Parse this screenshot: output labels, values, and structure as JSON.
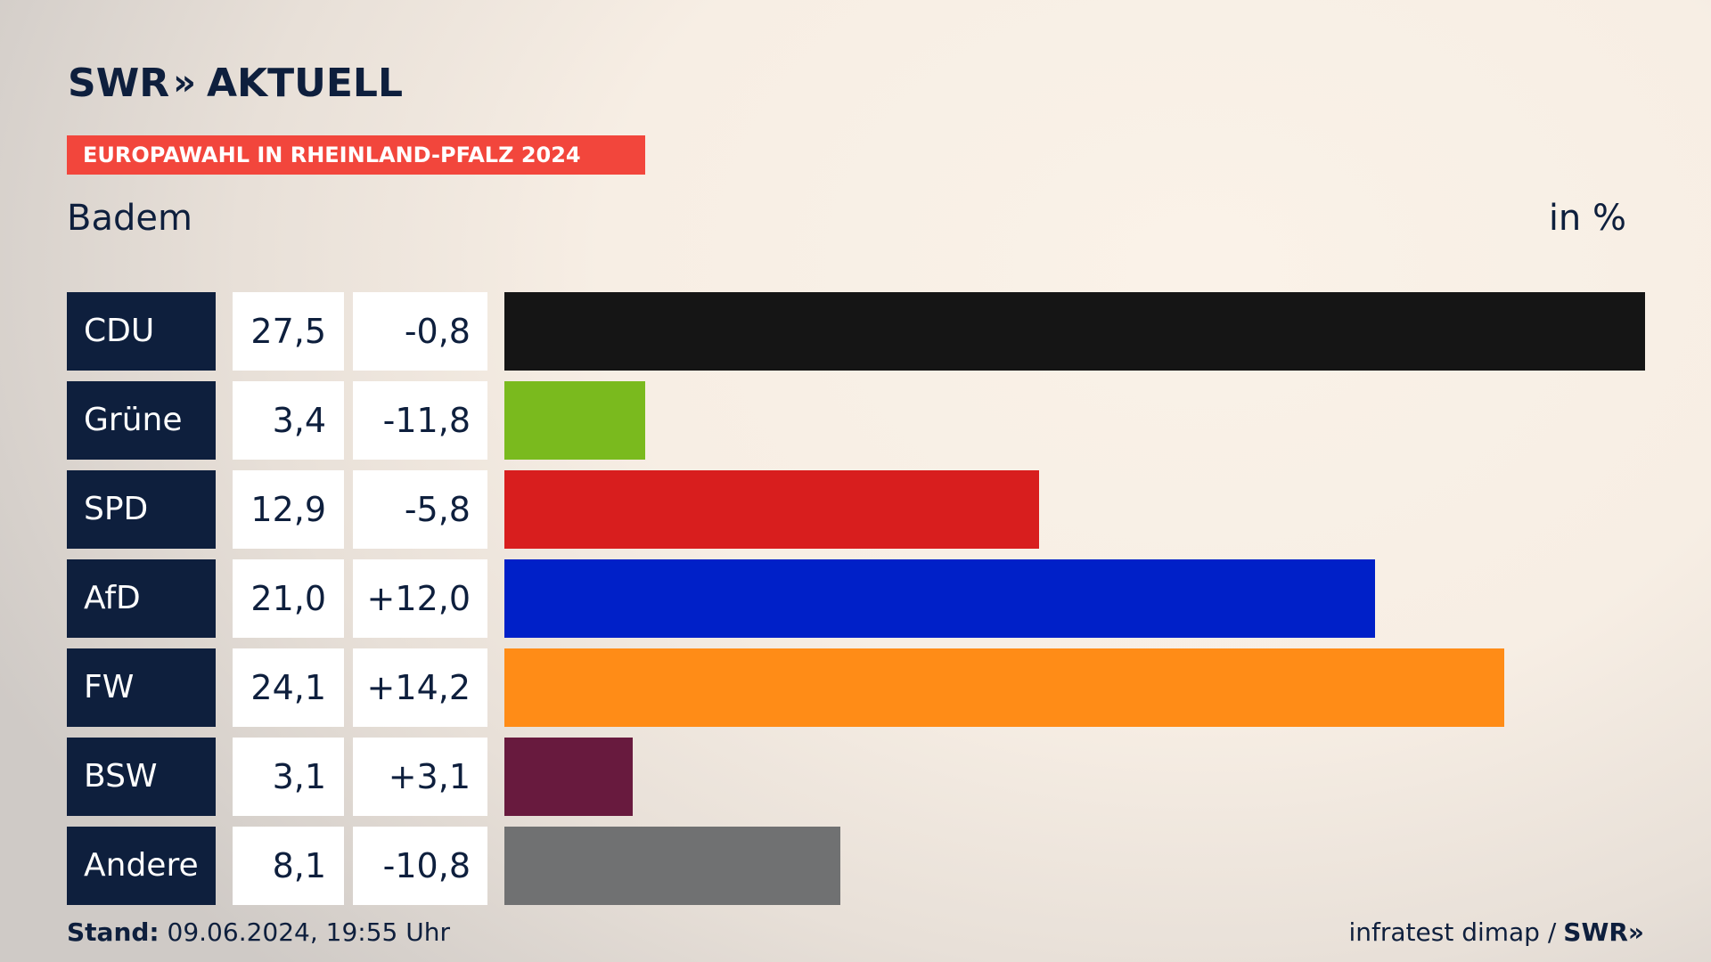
{
  "header": {
    "brand": "SWR",
    "brand_chevrons": "»",
    "brand_suffix": "AKTUELL",
    "banner": "EUROPAWAHL IN RHEINLAND-PFALZ 2024",
    "region": "Badem",
    "unit": "in %"
  },
  "chart_data": {
    "type": "bar",
    "orientation": "horizontal",
    "categories": [
      "CDU",
      "Grüne",
      "SPD",
      "AfD",
      "FW",
      "BSW",
      "Andere"
    ],
    "series": [
      {
        "values": [
          27.5,
          3.4,
          12.9,
          21.0,
          24.1,
          3.1,
          8.1
        ]
      }
    ],
    "value_labels": [
      "27,5",
      "3,4",
      "12,9",
      "21,0",
      "24,1",
      "3,1",
      "8,1"
    ],
    "diff_labels": [
      "-0,8",
      "-11,8",
      "-5,8",
      "+12,0",
      "+14,2",
      "+3,1",
      "-10,8"
    ],
    "colors": [
      "#151515",
      "#7aba1e",
      "#d81e1e",
      "#0020c8",
      "#ff8c17",
      "#681a3e",
      "#707172"
    ],
    "xlim": [
      0,
      27.5
    ],
    "grid": false
  },
  "footer": {
    "stand_label": "Stand:",
    "stand_value": "09.06.2024, 19:55 Uhr",
    "source": "infratest dimap /",
    "source_brand": "SWR»"
  }
}
